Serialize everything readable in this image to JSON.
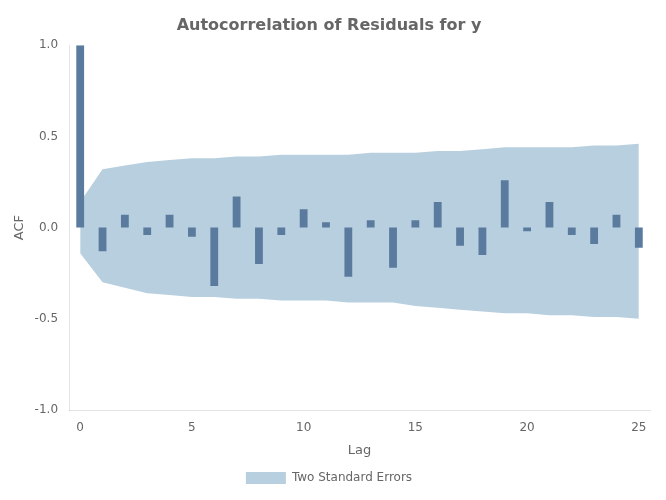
{
  "chart_data": {
    "type": "bar",
    "title": "Autocorrelation of Residuals for y",
    "xlabel": "Lag",
    "ylabel": "ACF",
    "x": [
      0,
      1,
      2,
      3,
      4,
      5,
      6,
      7,
      8,
      9,
      10,
      11,
      12,
      13,
      14,
      15,
      16,
      17,
      18,
      19,
      20,
      21,
      22,
      23,
      24,
      25
    ],
    "values": [
      1.0,
      -0.13,
      0.07,
      -0.04,
      0.07,
      -0.05,
      -0.32,
      0.17,
      -0.2,
      -0.04,
      0.1,
      0.03,
      -0.27,
      0.04,
      -0.22,
      0.04,
      0.14,
      -0.1,
      -0.15,
      0.26,
      -0.02,
      0.14,
      -0.04,
      -0.09,
      0.07,
      -0.11
    ],
    "color": "#5b7b9e",
    "band": {
      "name": "Two Standard Errors",
      "color": "#b8cfe0",
      "upper": [
        0.14,
        0.32,
        0.34,
        0.36,
        0.37,
        0.38,
        0.38,
        0.39,
        0.39,
        0.4,
        0.4,
        0.4,
        0.4,
        0.41,
        0.41,
        0.41,
        0.42,
        0.42,
        0.43,
        0.44,
        0.44,
        0.44,
        0.44,
        0.45,
        0.45,
        0.46
      ],
      "lower": [
        -0.14,
        -0.3,
        -0.33,
        -0.36,
        -0.37,
        -0.38,
        -0.38,
        -0.39,
        -0.39,
        -0.4,
        -0.4,
        -0.4,
        -0.41,
        -0.41,
        -0.41,
        -0.43,
        -0.44,
        -0.45,
        -0.46,
        -0.47,
        -0.47,
        -0.48,
        -0.48,
        -0.49,
        -0.49,
        -0.5
      ]
    },
    "xlim": [
      -0.5,
      25.5
    ],
    "xticks": [
      0,
      5,
      10,
      15,
      20,
      25
    ],
    "ylim": [
      -1.0,
      1.0
    ],
    "yticks": [
      {
        "value": -1.0,
        "label": "-1.0"
      },
      -0.5,
      {
        "value": 0.0,
        "label": "0.0"
      },
      0.5,
      {
        "value": 1.0,
        "label": "1.0"
      }
    ],
    "legend": "bottom",
    "grid": false
  }
}
